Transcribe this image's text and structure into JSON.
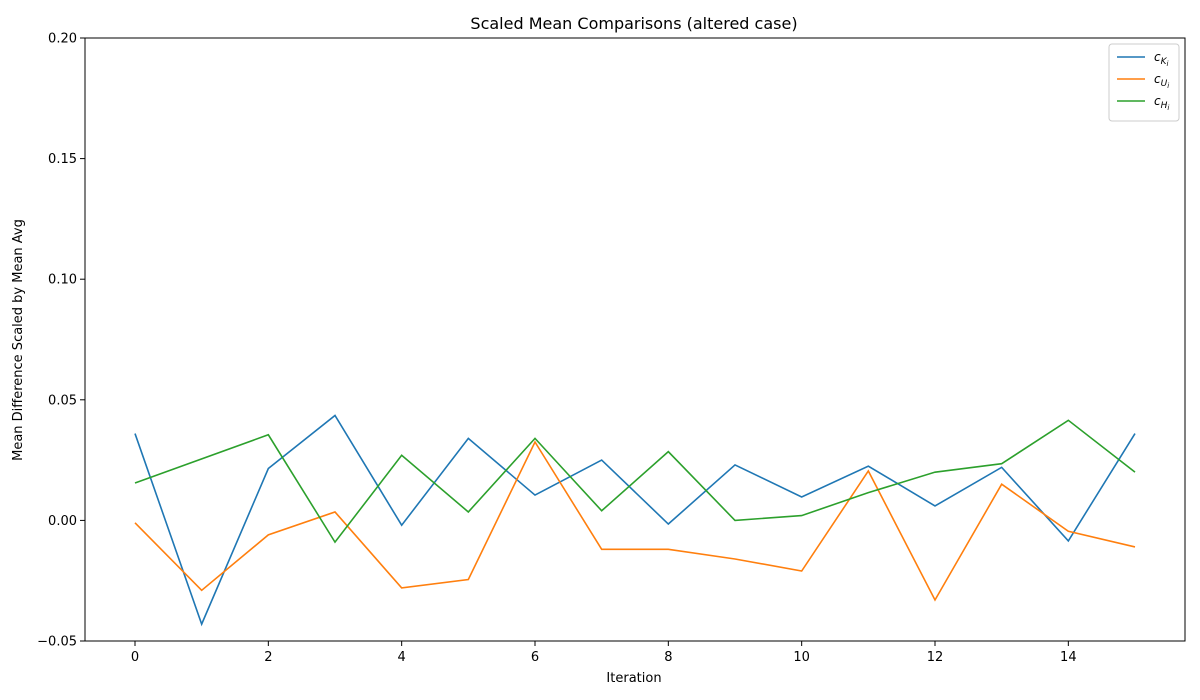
{
  "chart_data": {
    "type": "line",
    "title": "Scaled Mean Comparisons (altered case)",
    "xlabel": "Iteration",
    "ylabel": "Mean Difference Scaled by Mean Avg",
    "xlim": [
      -0.75,
      15.75
    ],
    "ylim": [
      -0.05,
      0.2
    ],
    "x_ticks": [
      0,
      2,
      4,
      6,
      8,
      10,
      12,
      14
    ],
    "y_ticks": [
      -0.05,
      0.0,
      0.05,
      0.1,
      0.15,
      0.2
    ],
    "y_tick_labels": [
      "−0.05",
      "0.00",
      "0.05",
      "0.10",
      "0.15",
      "0.20"
    ],
    "grid": false,
    "legend_position": "top-right",
    "x": [
      0,
      1,
      2,
      3,
      4,
      5,
      6,
      7,
      8,
      9,
      10,
      11,
      12,
      13,
      14,
      15
    ],
    "series": [
      {
        "name_base": "c",
        "name_sub": "K",
        "name_subsub": "i",
        "color": "#1f77b4",
        "values": [
          0.036,
          -0.043,
          0.0215,
          0.0435,
          -0.002,
          0.034,
          0.0105,
          0.025,
          -0.0015,
          0.023,
          0.0097,
          0.0225,
          0.006,
          0.022,
          -0.0085,
          0.036
        ]
      },
      {
        "name_base": "c",
        "name_sub": "U",
        "name_subsub": "i",
        "color": "#ff7f0e",
        "values": [
          -0.001,
          -0.029,
          -0.006,
          0.0035,
          -0.028,
          -0.0245,
          0.0325,
          -0.012,
          -0.012,
          -0.016,
          -0.021,
          0.0205,
          -0.033,
          0.015,
          -0.0045,
          -0.011
        ]
      },
      {
        "name_base": "c",
        "name_sub": "H",
        "name_subsub": "i",
        "color": "#2ca02c",
        "values": [
          0.0155,
          null,
          0.0355,
          -0.009,
          0.027,
          0.0035,
          0.034,
          0.004,
          0.0285,
          0.0,
          0.002,
          0.0115,
          0.02,
          0.0235,
          0.0415,
          0.02
        ]
      }
    ]
  }
}
